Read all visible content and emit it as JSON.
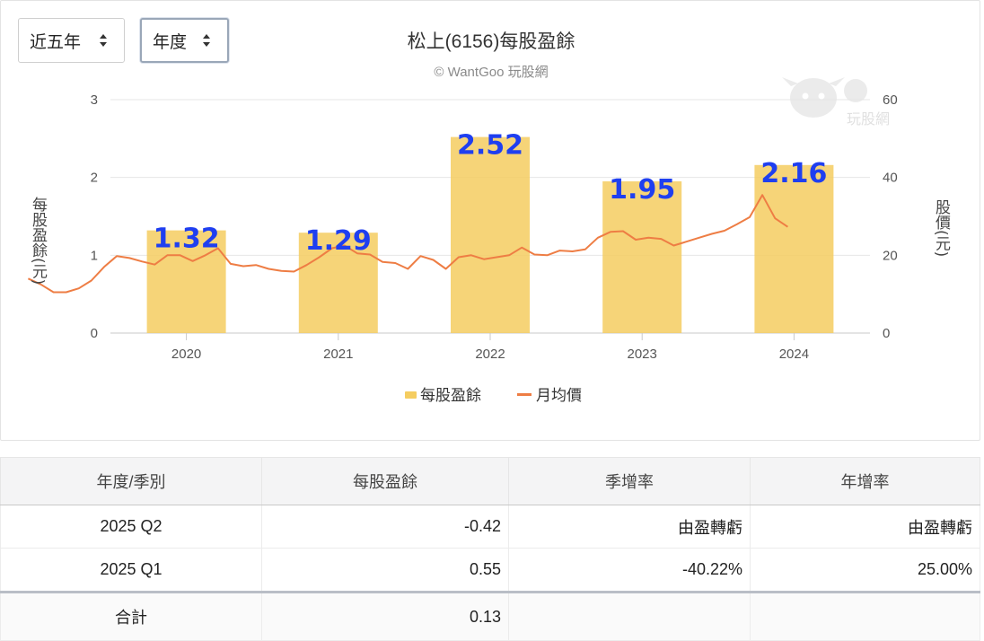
{
  "controls": {
    "range_label": "近五年",
    "period_label": "年度"
  },
  "chart_data": {
    "type": "bar",
    "title": "松上(6156)每股盈餘",
    "subtitle": "© WantGoo 玩股網",
    "watermark_text": "玩股網",
    "categories": [
      "2020",
      "2021",
      "2022",
      "2023",
      "2024"
    ],
    "series": [
      {
        "name": "每股盈餘",
        "type": "bar",
        "axis": "left",
        "values": [
          1.32,
          1.29,
          2.52,
          1.95,
          2.16
        ],
        "value_labels": [
          "1.32",
          "1.29",
          "2.52",
          "1.95",
          "2.16"
        ],
        "color": "#f5cd60"
      },
      {
        "name": "月均價",
        "type": "line",
        "axis": "right",
        "color": "#ee7d44",
        "points": [
          [
            "2019-06",
            14
          ],
          [
            "2019-07",
            12.5
          ],
          [
            "2019-08",
            10.5
          ],
          [
            "2019-09",
            10.5
          ],
          [
            "2019-10",
            11.5
          ],
          [
            "2019-11",
            13.5
          ],
          [
            "2019-12",
            17
          ],
          [
            "2020-01",
            19.8
          ],
          [
            "2020-02",
            19.3
          ],
          [
            "2020-03",
            18.4
          ],
          [
            "2020-04",
            17.6
          ],
          [
            "2020-05",
            20
          ],
          [
            "2020-06",
            20
          ],
          [
            "2020-07",
            18.5
          ],
          [
            "2020-08",
            20
          ],
          [
            "2020-09",
            21.8
          ],
          [
            "2020-10",
            17.8
          ],
          [
            "2020-11",
            17.2
          ],
          [
            "2020-12",
            17.5
          ],
          [
            "2021-01",
            16.5
          ],
          [
            "2021-02",
            16
          ],
          [
            "2021-03",
            15.8
          ],
          [
            "2021-04",
            17.5
          ],
          [
            "2021-05",
            19.5
          ],
          [
            "2021-06",
            21.8
          ],
          [
            "2021-07",
            22.5
          ],
          [
            "2021-08",
            20.5
          ],
          [
            "2021-09",
            20.2
          ],
          [
            "2021-10",
            18.3
          ],
          [
            "2021-11",
            18
          ],
          [
            "2021-12",
            16.5
          ],
          [
            "2022-01",
            19.8
          ],
          [
            "2022-02",
            18.8
          ],
          [
            "2022-03",
            16.5
          ],
          [
            "2022-04",
            19.5
          ],
          [
            "2022-05",
            20
          ],
          [
            "2022-06",
            19
          ],
          [
            "2022-07",
            19.5
          ],
          [
            "2022-08",
            20
          ],
          [
            "2022-09",
            22
          ],
          [
            "2022-10",
            20.2
          ],
          [
            "2022-11",
            20
          ],
          [
            "2022-12",
            21.2
          ],
          [
            "2023-01",
            21
          ],
          [
            "2023-02",
            21.5
          ],
          [
            "2023-03",
            24.5
          ],
          [
            "2023-04",
            26
          ],
          [
            "2023-05",
            26.2
          ],
          [
            "2023-06",
            24
          ],
          [
            "2023-07",
            24.5
          ],
          [
            "2023-08",
            24.2
          ],
          [
            "2023-09",
            22.5
          ],
          [
            "2023-10",
            23.5
          ],
          [
            "2023-11",
            24.5
          ],
          [
            "2023-12",
            25.5
          ],
          [
            "2024-01",
            26.3
          ],
          [
            "2024-02",
            28
          ],
          [
            "2024-03",
            29.8
          ],
          [
            "2024-04",
            35.5
          ],
          [
            "2024-05",
            29.5
          ],
          [
            "2024-06",
            27.3
          ]
        ]
      }
    ],
    "y_left": {
      "label": "每股盈餘(元)",
      "ylim": [
        0,
        3
      ],
      "ticks": [
        "0",
        "1",
        "2",
        "3"
      ]
    },
    "y_right": {
      "label": "股價(元)",
      "ylim": [
        0,
        60
      ],
      "ticks": [
        "0",
        "20",
        "40",
        "60"
      ]
    },
    "grid": true,
    "legend_position": "bottom"
  },
  "table": {
    "headers": [
      "年度/季別",
      "每股盈餘",
      "季增率",
      "年增率"
    ],
    "rows": [
      [
        "2025 Q2",
        "-0.42",
        "由盈轉虧",
        "由盈轉虧"
      ],
      [
        "2025 Q1",
        "0.55",
        "-40.22%",
        "25.00%"
      ]
    ],
    "total": {
      "label": "合計",
      "eps": "0.13"
    }
  }
}
